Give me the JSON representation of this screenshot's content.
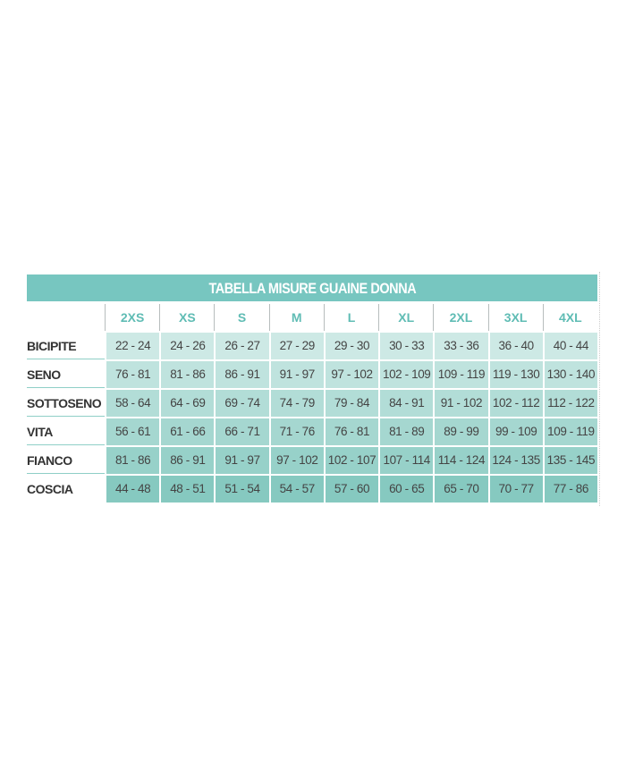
{
  "title": "TABELLA MISURE GUAINE DONNA",
  "sizes": [
    "2XS",
    "XS",
    "S",
    "M",
    "L",
    "XL",
    "2XL",
    "3XL",
    "4XL"
  ],
  "colors": {
    "title_bg": "#77c6c0",
    "header_text": "#5fbcb4",
    "row_bgs": [
      "#cde9e5",
      "#bfe3de",
      "#b2ddd7",
      "#a5d7d0",
      "#97d1c9",
      "#86c9c0"
    ]
  },
  "rows": [
    {
      "label": "BICIPITE",
      "values": [
        "22 - 24",
        "24 - 26",
        "26 - 27",
        "27 - 29",
        "29 - 30",
        "30 - 33",
        "33 - 36",
        "36 - 40",
        "40 - 44"
      ]
    },
    {
      "label": "SENO",
      "values": [
        "76 - 81",
        "81 - 86",
        "86 - 91",
        "91 - 97",
        "97 - 102",
        "102 - 109",
        "109 - 119",
        "119 - 130",
        "130 - 140"
      ]
    },
    {
      "label": "SOTTOSENO",
      "values": [
        "58 - 64",
        "64 - 69",
        "69 - 74",
        "74 - 79",
        "79 - 84",
        "84 - 91",
        "91 - 102",
        "102 - 112",
        "112 - 122"
      ]
    },
    {
      "label": "VITA",
      "values": [
        "56 - 61",
        "61 - 66",
        "66 - 71",
        "71 - 76",
        "76 - 81",
        "81 - 89",
        "89 - 99",
        "99 - 109",
        "109 - 119"
      ]
    },
    {
      "label": "FIANCO",
      "values": [
        "81 - 86",
        "86 - 91",
        "91 - 97",
        "97 - 102",
        "102 - 107",
        "107 - 114",
        "114 - 124",
        "124 - 135",
        "135 - 145"
      ]
    },
    {
      "label": "COSCIA",
      "values": [
        "44 - 48",
        "48 - 51",
        "51 - 54",
        "54 - 57",
        "57 - 60",
        "60 - 65",
        "65 - 70",
        "70 - 77",
        "77 - 86"
      ]
    }
  ]
}
